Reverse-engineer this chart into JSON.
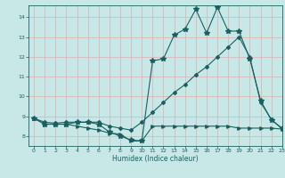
{
  "xlabel": "Humidex (Indice chaleur)",
  "bg_color": "#c8e8e8",
  "line_color": "#1a6060",
  "grid_color": "#d8b8b8",
  "xlim": [
    -0.5,
    23
  ],
  "ylim": [
    7.5,
    14.6
  ],
  "xticks": [
    0,
    1,
    2,
    3,
    4,
    5,
    6,
    7,
    8,
    9,
    10,
    11,
    12,
    13,
    14,
    15,
    16,
    17,
    18,
    19,
    20,
    21,
    22,
    23
  ],
  "yticks": [
    8,
    9,
    10,
    11,
    12,
    13,
    14
  ],
  "line1_x": [
    0,
    1,
    2,
    3,
    4,
    5,
    6,
    7,
    8,
    9,
    10,
    11,
    12,
    13,
    14,
    15,
    16,
    17,
    18,
    19,
    20,
    21,
    22,
    23
  ],
  "line1_y": [
    8.9,
    8.6,
    8.6,
    8.6,
    8.7,
    8.7,
    8.6,
    8.2,
    8.0,
    7.8,
    7.75,
    11.8,
    11.9,
    13.1,
    13.4,
    14.4,
    13.2,
    14.5,
    13.3,
    13.3,
    11.9,
    9.8,
    8.8,
    8.4
  ],
  "line2_x": [
    0,
    1,
    2,
    3,
    4,
    5,
    6,
    7,
    8,
    9,
    10,
    11,
    12,
    13,
    14,
    15,
    16,
    17,
    18,
    19,
    20,
    21,
    22,
    23
  ],
  "line2_y": [
    8.9,
    8.6,
    8.6,
    8.6,
    8.5,
    8.4,
    8.3,
    8.15,
    8.1,
    7.75,
    7.75,
    8.5,
    8.5,
    8.5,
    8.5,
    8.5,
    8.5,
    8.5,
    8.5,
    8.4,
    8.4,
    8.4,
    8.4,
    8.35
  ],
  "line3_x": [
    0,
    1,
    2,
    3,
    4,
    5,
    6,
    7,
    8,
    9,
    10,
    11,
    12,
    13,
    14,
    15,
    16,
    17,
    18,
    19,
    20,
    21,
    22,
    23
  ],
  "line3_y": [
    8.9,
    8.7,
    8.65,
    8.7,
    8.7,
    8.7,
    8.7,
    8.5,
    8.4,
    8.3,
    8.7,
    9.2,
    9.7,
    10.2,
    10.6,
    11.1,
    11.5,
    12.0,
    12.5,
    13.0,
    12.0,
    9.7,
    8.85,
    8.35
  ]
}
